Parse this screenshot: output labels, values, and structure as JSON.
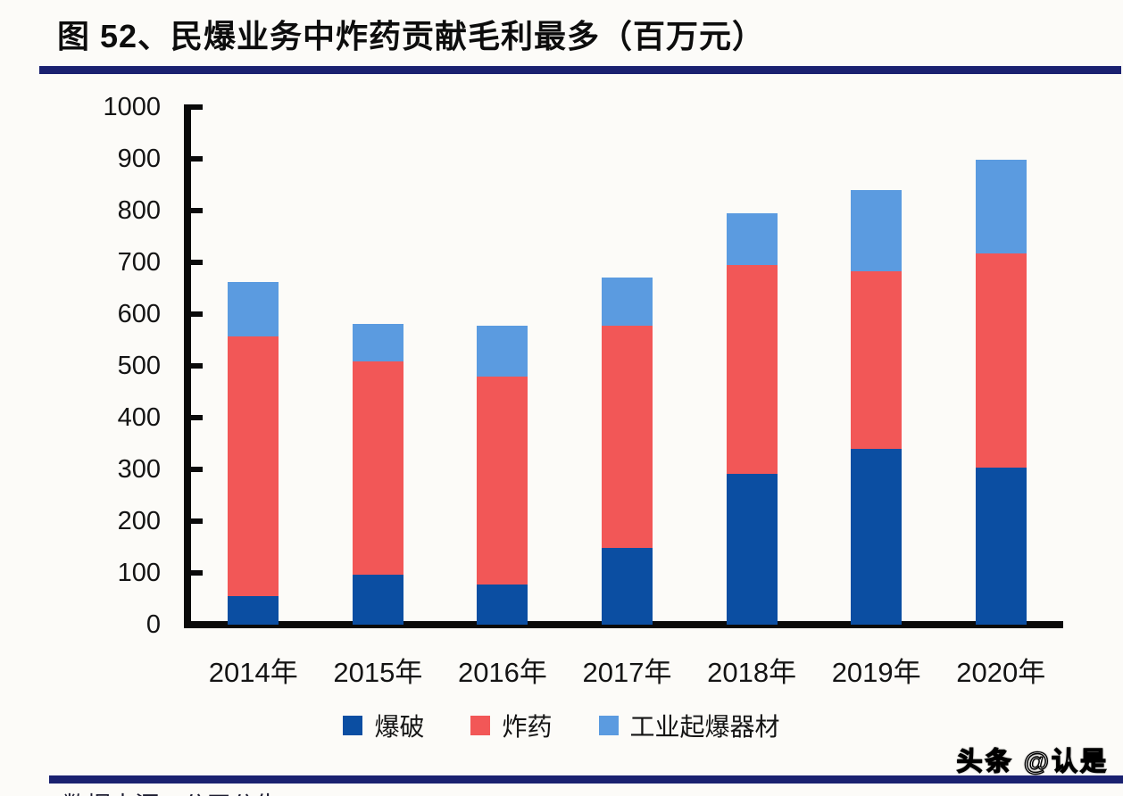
{
  "page": {
    "background": "#fcfbf8"
  },
  "header": {
    "title": "图 52、民爆业务中炸药贡献毛利最多（百万元）",
    "rule_color": "#1a2170"
  },
  "chart_data": {
    "type": "bar",
    "stacked": true,
    "title": "图 52、民爆业务中炸药贡献毛利最多（百万元）",
    "xlabel": "",
    "ylabel": "",
    "unit": "百万元",
    "categories": [
      "2014年",
      "2015年",
      "2016年",
      "2017年",
      "2018年",
      "2019年",
      "2020年"
    ],
    "series": [
      {
        "name": "爆破",
        "color": "#0b4ea2",
        "values": [
          55,
          97,
          78,
          148,
          292,
          339,
          304
        ]
      },
      {
        "name": "炸药",
        "color": "#f25757",
        "values": [
          502,
          411,
          402,
          430,
          402,
          344,
          414
        ]
      },
      {
        "name": "工业起爆器材",
        "color": "#5b9be0",
        "values": [
          105,
          73,
          97,
          93,
          101,
          157,
          180
        ]
      }
    ],
    "stack_totals": [
      662,
      581,
      577,
      671,
      795,
      840,
      898
    ],
    "ylim": [
      0,
      1000
    ],
    "ytick_step": 100,
    "grid": false,
    "legend_position": "bottom"
  },
  "watermark": {
    "text": "头条 @认是"
  },
  "footer": {
    "rule_color": "#1a2170",
    "partial_text": "数据来源：公司公告，……"
  }
}
